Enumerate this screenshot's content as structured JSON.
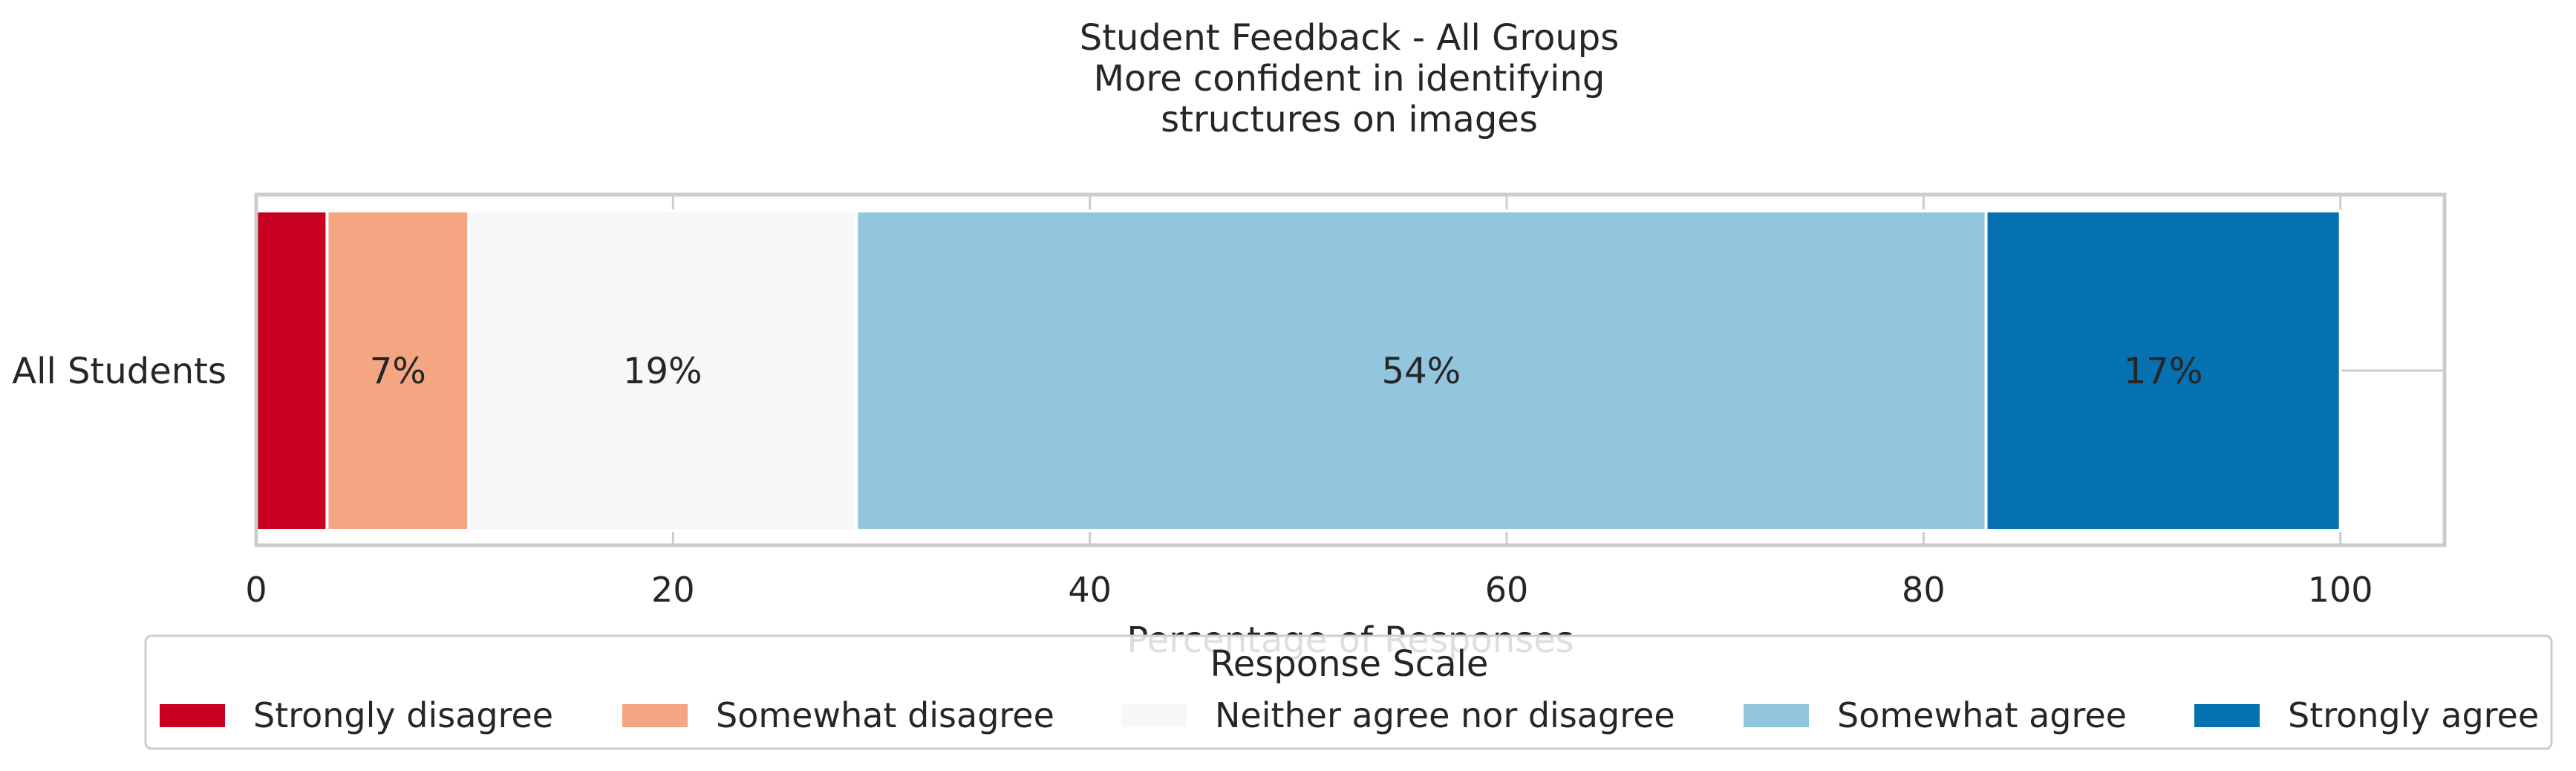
{
  "chart_data": {
    "type": "bar",
    "orientation": "horizontal",
    "stacked": true,
    "title_lines": [
      "Student Feedback - All Groups",
      "More confident in identifying",
      "structures on images"
    ],
    "categories": [
      "All Students"
    ],
    "series": [
      {
        "name": "Strongly disagree",
        "color": "#ca0020",
        "values": [
          3.4
        ],
        "label": ""
      },
      {
        "name": "Somewhat disagree",
        "color": "#f4a582",
        "values": [
          6.8
        ],
        "label": "7%"
      },
      {
        "name": "Neither agree nor disagree",
        "color": "#f7f7f7",
        "values": [
          18.6
        ],
        "label": "19%"
      },
      {
        "name": "Somewhat agree",
        "color": "#92c5de",
        "values": [
          54.2
        ],
        "label": "54%"
      },
      {
        "name": "Strongly agree",
        "color": "#0571b0",
        "values": [
          17.0
        ],
        "label": "17%"
      }
    ],
    "xlabel": "Percentage of Responses",
    "xlim": [
      0,
      105
    ],
    "xticks": [
      0,
      20,
      40,
      60,
      80,
      100
    ],
    "grid": true,
    "legend": {
      "title": "Response Scale",
      "placement": "bottom-center"
    }
  }
}
